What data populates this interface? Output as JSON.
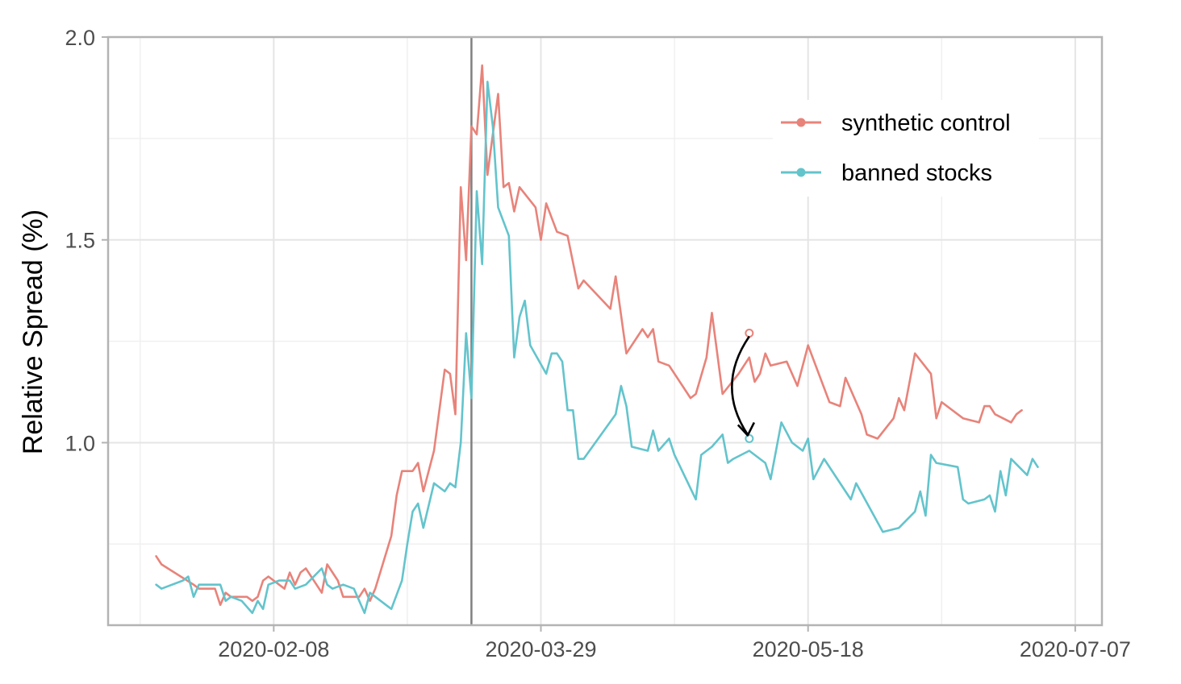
{
  "chart_data": {
    "type": "line",
    "title": "",
    "xlabel": "",
    "ylabel": "Relative Spread (%)",
    "x_type": "date",
    "xlim": [
      "2020-01-08",
      "2020-07-12"
    ],
    "ylim": [
      0.55,
      2.0
    ],
    "x_ticks": [
      "2020-02-08",
      "2020-03-29",
      "2020-05-18",
      "2020-07-07"
    ],
    "y_ticks": [
      1.0,
      1.5,
      2.0
    ],
    "y_tick_labels": [
      "1.0",
      "1.5",
      "2.0"
    ],
    "grid": true,
    "legend_position": "top-right",
    "event_line_date": "2020-03-16",
    "annotation": {
      "type": "arrow",
      "date": "2020-05-07",
      "from_value": 1.27,
      "to_value": 1.01
    },
    "series": [
      {
        "name": "synthetic control",
        "color": "#E8837A",
        "points": [
          [
            "2020-01-17",
            0.72
          ],
          [
            "2020-01-18",
            0.7
          ],
          [
            "2020-01-24",
            0.65
          ],
          [
            "2020-01-25",
            0.64
          ],
          [
            "2020-01-28",
            0.64
          ],
          [
            "2020-01-29",
            0.6
          ],
          [
            "2020-01-30",
            0.63
          ],
          [
            "2020-01-31",
            0.62
          ],
          [
            "2020-02-03",
            0.62
          ],
          [
            "2020-02-04",
            0.61
          ],
          [
            "2020-02-05",
            0.62
          ],
          [
            "2020-02-06",
            0.66
          ],
          [
            "2020-02-07",
            0.67
          ],
          [
            "2020-02-10",
            0.64
          ],
          [
            "2020-02-11",
            0.68
          ],
          [
            "2020-02-12",
            0.65
          ],
          [
            "2020-02-13",
            0.68
          ],
          [
            "2020-02-14",
            0.69
          ],
          [
            "2020-02-17",
            0.63
          ],
          [
            "2020-02-18",
            0.7
          ],
          [
            "2020-02-20",
            0.66
          ],
          [
            "2020-02-21",
            0.62
          ],
          [
            "2020-02-24",
            0.62
          ],
          [
            "2020-02-25",
            0.64
          ],
          [
            "2020-02-26",
            0.61
          ],
          [
            "2020-02-27",
            0.64
          ],
          [
            "2020-03-01",
            0.77
          ],
          [
            "2020-03-02",
            0.87
          ],
          [
            "2020-03-03",
            0.93
          ],
          [
            "2020-03-05",
            0.93
          ],
          [
            "2020-03-06",
            0.95
          ],
          [
            "2020-03-07",
            0.88
          ],
          [
            "2020-03-09",
            0.98
          ],
          [
            "2020-03-11",
            1.18
          ],
          [
            "2020-03-12",
            1.17
          ],
          [
            "2020-03-13",
            1.07
          ],
          [
            "2020-03-14",
            1.63
          ],
          [
            "2020-03-15",
            1.45
          ],
          [
            "2020-03-16",
            1.78
          ],
          [
            "2020-03-17",
            1.76
          ],
          [
            "2020-03-18",
            1.93
          ],
          [
            "2020-03-19",
            1.66
          ],
          [
            "2020-03-21",
            1.86
          ],
          [
            "2020-03-22",
            1.63
          ],
          [
            "2020-03-23",
            1.64
          ],
          [
            "2020-03-24",
            1.57
          ],
          [
            "2020-03-25",
            1.63
          ],
          [
            "2020-03-28",
            1.58
          ],
          [
            "2020-03-29",
            1.5
          ],
          [
            "2020-03-30",
            1.59
          ],
          [
            "2020-04-01",
            1.52
          ],
          [
            "2020-04-03",
            1.51
          ],
          [
            "2020-04-05",
            1.38
          ],
          [
            "2020-04-06",
            1.4
          ],
          [
            "2020-04-11",
            1.33
          ],
          [
            "2020-04-12",
            1.41
          ],
          [
            "2020-04-14",
            1.22
          ],
          [
            "2020-04-17",
            1.28
          ],
          [
            "2020-04-18",
            1.26
          ],
          [
            "2020-04-19",
            1.28
          ],
          [
            "2020-04-20",
            1.2
          ],
          [
            "2020-04-22",
            1.19
          ],
          [
            "2020-04-26",
            1.11
          ],
          [
            "2020-04-27",
            1.12
          ],
          [
            "2020-04-29",
            1.21
          ],
          [
            "2020-04-30",
            1.32
          ],
          [
            "2020-05-02",
            1.12
          ],
          [
            "2020-05-05",
            1.17
          ],
          [
            "2020-05-07",
            1.21
          ],
          [
            "2020-05-08",
            1.15
          ],
          [
            "2020-05-09",
            1.17
          ],
          [
            "2020-05-10",
            1.22
          ],
          [
            "2020-05-11",
            1.19
          ],
          [
            "2020-05-14",
            1.2
          ],
          [
            "2020-05-16",
            1.14
          ],
          [
            "2020-05-18",
            1.24
          ],
          [
            "2020-05-22",
            1.1
          ],
          [
            "2020-05-24",
            1.09
          ],
          [
            "2020-05-25",
            1.16
          ],
          [
            "2020-05-28",
            1.07
          ],
          [
            "2020-05-29",
            1.02
          ],
          [
            "2020-05-31",
            1.01
          ],
          [
            "2020-06-03",
            1.06
          ],
          [
            "2020-06-04",
            1.11
          ],
          [
            "2020-06-05",
            1.08
          ],
          [
            "2020-06-07",
            1.22
          ],
          [
            "2020-06-10",
            1.17
          ],
          [
            "2020-06-11",
            1.06
          ],
          [
            "2020-06-12",
            1.1
          ],
          [
            "2020-06-16",
            1.06
          ],
          [
            "2020-06-19",
            1.05
          ],
          [
            "2020-06-20",
            1.09
          ],
          [
            "2020-06-21",
            1.09
          ],
          [
            "2020-06-22",
            1.07
          ],
          [
            "2020-06-25",
            1.05
          ],
          [
            "2020-06-26",
            1.07
          ],
          [
            "2020-06-27",
            1.08
          ]
        ]
      },
      {
        "name": "banned stocks",
        "color": "#63C4CC",
        "points": [
          [
            "2020-01-17",
            0.65
          ],
          [
            "2020-01-18",
            0.64
          ],
          [
            "2020-01-22",
            0.66
          ],
          [
            "2020-01-23",
            0.67
          ],
          [
            "2020-01-24",
            0.62
          ],
          [
            "2020-01-25",
            0.65
          ],
          [
            "2020-01-29",
            0.65
          ],
          [
            "2020-01-30",
            0.61
          ],
          [
            "2020-01-31",
            0.62
          ],
          [
            "2020-02-02",
            0.61
          ],
          [
            "2020-02-04",
            0.58
          ],
          [
            "2020-02-05",
            0.61
          ],
          [
            "2020-02-06",
            0.59
          ],
          [
            "2020-02-07",
            0.65
          ],
          [
            "2020-02-09",
            0.66
          ],
          [
            "2020-02-11",
            0.66
          ],
          [
            "2020-02-12",
            0.64
          ],
          [
            "2020-02-14",
            0.65
          ],
          [
            "2020-02-17",
            0.69
          ],
          [
            "2020-02-18",
            0.65
          ],
          [
            "2020-02-19",
            0.64
          ],
          [
            "2020-02-21",
            0.65
          ],
          [
            "2020-02-23",
            0.64
          ],
          [
            "2020-02-25",
            0.58
          ],
          [
            "2020-02-26",
            0.63
          ],
          [
            "2020-02-29",
            0.6
          ],
          [
            "2020-03-01",
            0.59
          ],
          [
            "2020-03-03",
            0.66
          ],
          [
            "2020-03-04",
            0.75
          ],
          [
            "2020-03-05",
            0.83
          ],
          [
            "2020-03-06",
            0.85
          ],
          [
            "2020-03-07",
            0.79
          ],
          [
            "2020-03-09",
            0.9
          ],
          [
            "2020-03-11",
            0.88
          ],
          [
            "2020-03-12",
            0.9
          ],
          [
            "2020-03-13",
            0.89
          ],
          [
            "2020-03-14",
            1.0
          ],
          [
            "2020-03-15",
            1.27
          ],
          [
            "2020-03-16",
            1.11
          ],
          [
            "2020-03-17",
            1.62
          ],
          [
            "2020-03-18",
            1.44
          ],
          [
            "2020-03-19",
            1.89
          ],
          [
            "2020-03-20",
            1.78
          ],
          [
            "2020-03-21",
            1.58
          ],
          [
            "2020-03-23",
            1.51
          ],
          [
            "2020-03-24",
            1.21
          ],
          [
            "2020-03-25",
            1.31
          ],
          [
            "2020-03-26",
            1.35
          ],
          [
            "2020-03-27",
            1.24
          ],
          [
            "2020-03-30",
            1.17
          ],
          [
            "2020-03-31",
            1.22
          ],
          [
            "2020-04-01",
            1.22
          ],
          [
            "2020-04-02",
            1.2
          ],
          [
            "2020-04-03",
            1.08
          ],
          [
            "2020-04-04",
            1.08
          ],
          [
            "2020-04-05",
            0.96
          ],
          [
            "2020-04-06",
            0.96
          ],
          [
            "2020-04-12",
            1.07
          ],
          [
            "2020-04-13",
            1.14
          ],
          [
            "2020-04-14",
            1.09
          ],
          [
            "2020-04-15",
            0.99
          ],
          [
            "2020-04-18",
            0.98
          ],
          [
            "2020-04-19",
            1.03
          ],
          [
            "2020-04-20",
            0.98
          ],
          [
            "2020-04-22",
            1.01
          ],
          [
            "2020-04-23",
            0.97
          ],
          [
            "2020-04-27",
            0.86
          ],
          [
            "2020-04-28",
            0.97
          ],
          [
            "2020-04-30",
            0.99
          ],
          [
            "2020-05-02",
            1.02
          ],
          [
            "2020-05-03",
            0.95
          ],
          [
            "2020-05-04",
            0.96
          ],
          [
            "2020-05-07",
            0.98
          ],
          [
            "2020-05-10",
            0.95
          ],
          [
            "2020-05-11",
            0.91
          ],
          [
            "2020-05-13",
            1.05
          ],
          [
            "2020-05-15",
            1.0
          ],
          [
            "2020-05-17",
            0.98
          ],
          [
            "2020-05-18",
            1.01
          ],
          [
            "2020-05-19",
            0.91
          ],
          [
            "2020-05-21",
            0.96
          ],
          [
            "2020-05-26",
            0.86
          ],
          [
            "2020-05-27",
            0.9
          ],
          [
            "2020-06-01",
            0.78
          ],
          [
            "2020-06-04",
            0.79
          ],
          [
            "2020-06-07",
            0.83
          ],
          [
            "2020-06-08",
            0.88
          ],
          [
            "2020-06-09",
            0.82
          ],
          [
            "2020-06-10",
            0.97
          ],
          [
            "2020-06-11",
            0.95
          ],
          [
            "2020-06-15",
            0.94
          ],
          [
            "2020-06-16",
            0.86
          ],
          [
            "2020-06-17",
            0.85
          ],
          [
            "2020-06-20",
            0.86
          ],
          [
            "2020-06-21",
            0.87
          ],
          [
            "2020-06-22",
            0.83
          ],
          [
            "2020-06-23",
            0.93
          ],
          [
            "2020-06-24",
            0.87
          ],
          [
            "2020-06-25",
            0.96
          ],
          [
            "2020-06-28",
            0.92
          ],
          [
            "2020-06-29",
            0.96
          ],
          [
            "2020-06-30",
            0.94
          ]
        ]
      }
    ]
  }
}
